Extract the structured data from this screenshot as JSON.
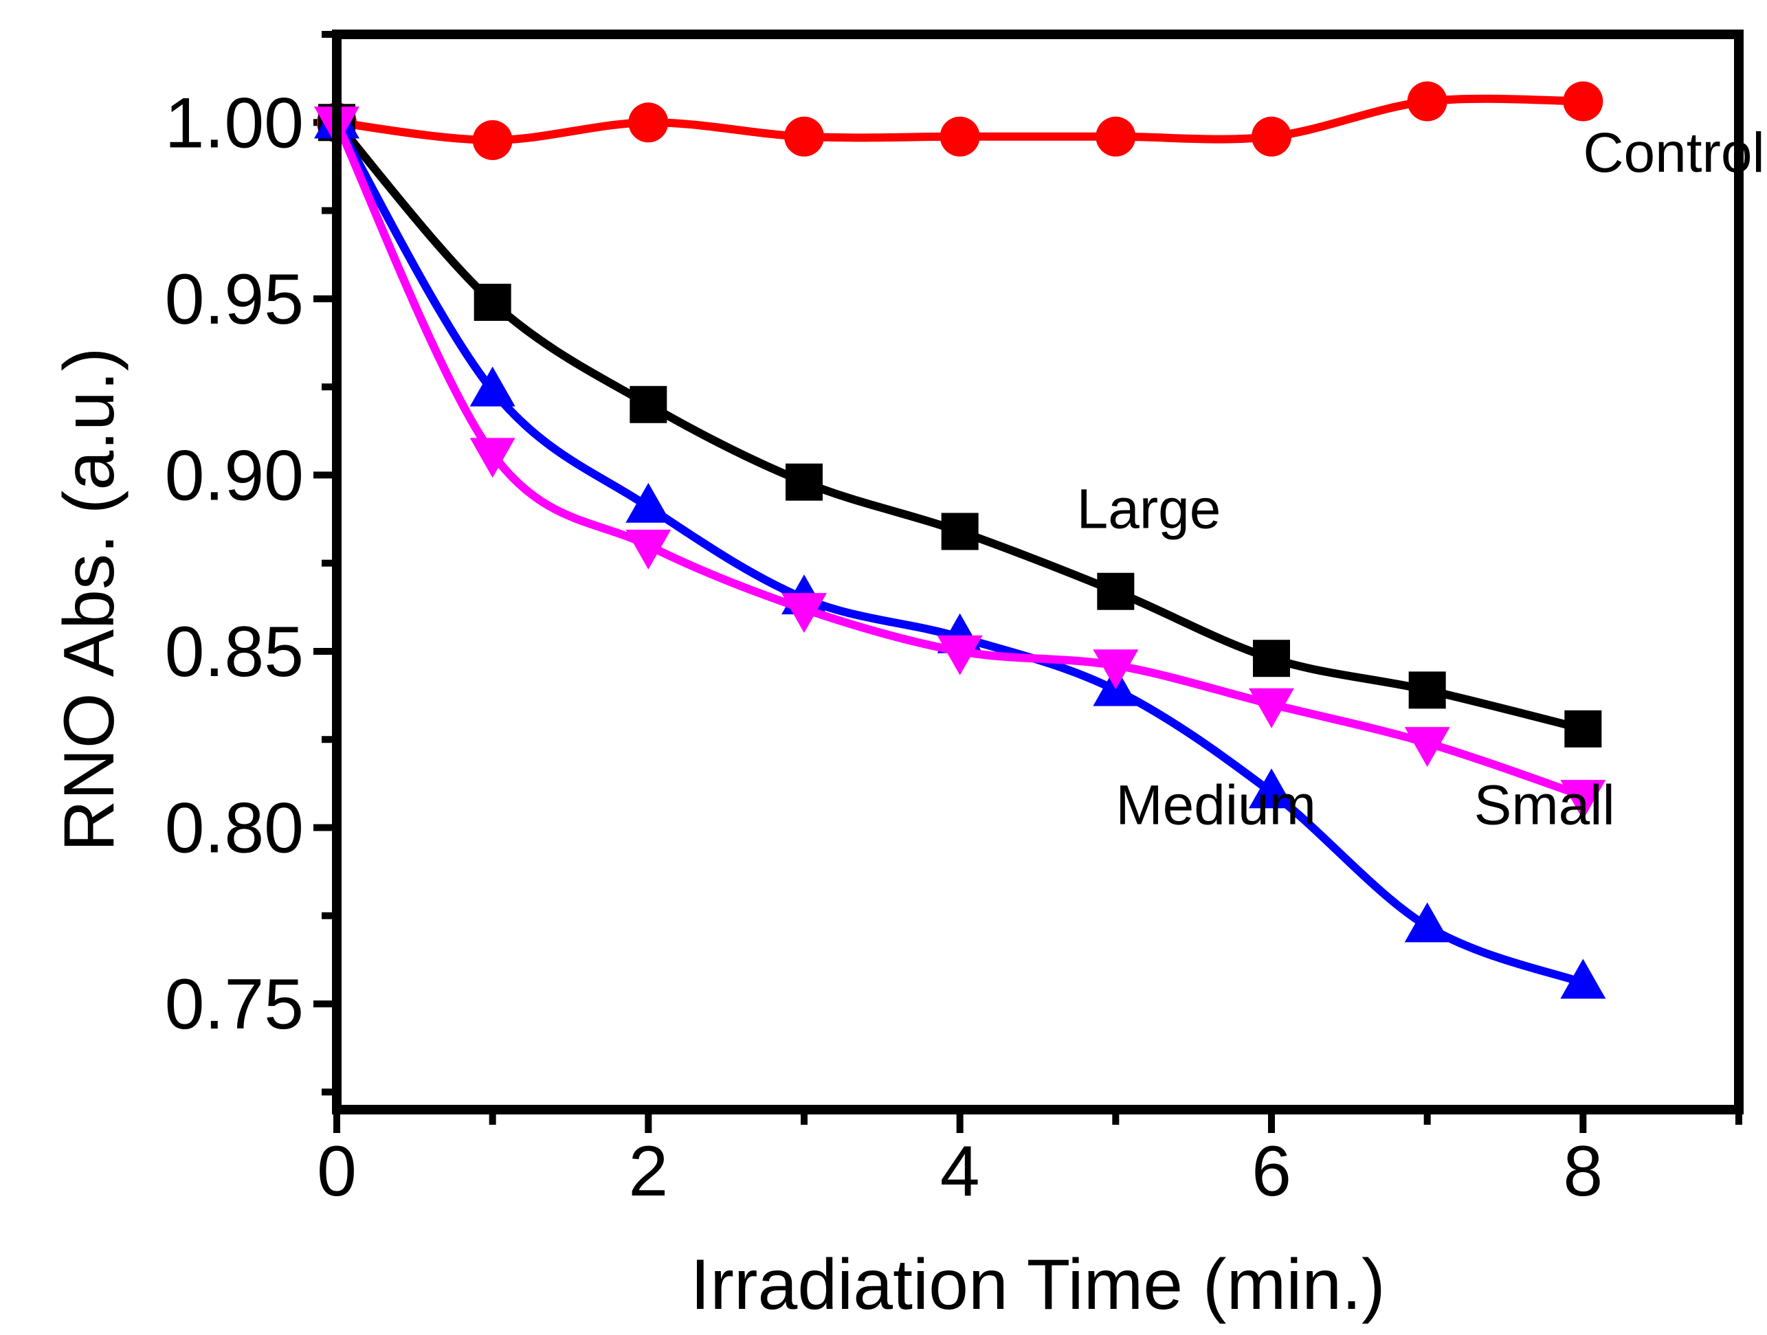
{
  "chart_data": {
    "type": "line",
    "title": "",
    "xlabel": "Irradiation Time (min.)",
    "ylabel": "RNO Abs. (a.u.)",
    "xlim": [
      0,
      9
    ],
    "ylim": [
      0.72,
      1.025
    ],
    "grid": false,
    "legend": "none (inline labels)",
    "x_ticks": [
      0,
      2,
      4,
      6,
      8
    ],
    "x_tick_labels": [
      "0",
      "2",
      "4",
      "6",
      "8"
    ],
    "y_ticks": [
      0.75,
      0.8,
      0.85,
      0.9,
      0.95,
      1.0
    ],
    "y_tick_labels": [
      "0.75",
      "0.80",
      "0.85",
      "0.90",
      "0.95",
      "1.00"
    ],
    "x": [
      0,
      1,
      2,
      3,
      4,
      5,
      6,
      7,
      8
    ],
    "series": [
      {
        "name": "Control",
        "label": "Control",
        "label_anchor": [
          8,
          0.986
        ],
        "color": "#ff0000",
        "marker": "circle",
        "values": [
          1.0,
          0.995,
          1.0,
          0.996,
          0.996,
          0.996,
          0.996,
          1.006,
          1.006
        ]
      },
      {
        "name": "Large",
        "label": "Large",
        "label_anchor": [
          4.75,
          0.885
        ],
        "color": "#000000",
        "marker": "square",
        "values": [
          1.0,
          0.949,
          0.92,
          0.898,
          0.884,
          0.867,
          0.848,
          0.839,
          0.828
        ]
      },
      {
        "name": "Medium",
        "label": "Medium",
        "label_anchor": [
          5.0,
          0.801
        ],
        "color": "#0000ff",
        "marker": "triangle-up",
        "values": [
          1.0,
          0.924,
          0.891,
          0.865,
          0.854,
          0.839,
          0.81,
          0.772,
          0.756
        ]
      },
      {
        "name": "Small",
        "label": "Small",
        "label_anchor": [
          7.3,
          0.801
        ],
        "color": "#ff00ff",
        "marker": "triangle-down",
        "values": [
          1.0,
          0.906,
          0.88,
          0.862,
          0.85,
          0.846,
          0.835,
          0.824,
          0.809
        ]
      }
    ]
  }
}
